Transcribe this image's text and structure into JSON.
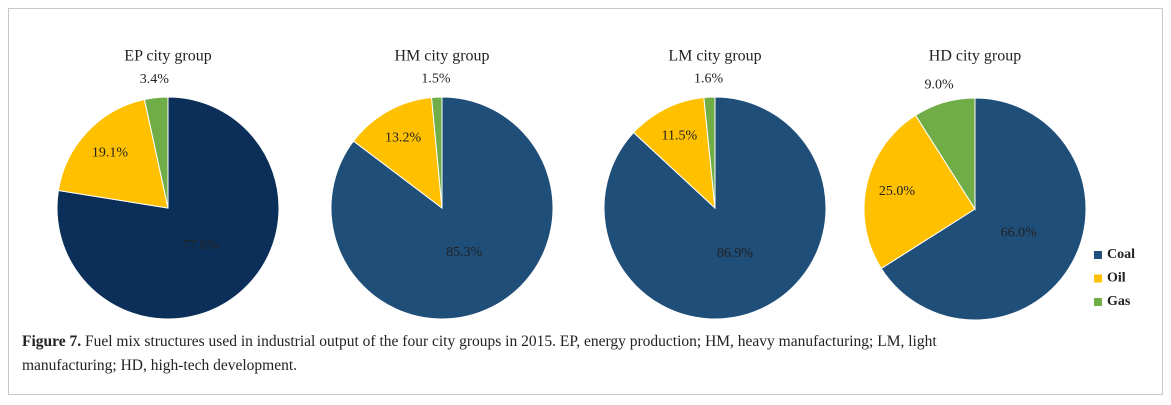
{
  "chart_data": [
    {
      "type": "pie",
      "title": "EP city group",
      "categories": [
        "Coal",
        "Oil",
        "Gas"
      ],
      "values": [
        77.6,
        19.1,
        3.4
      ],
      "value_labels": [
        "77.6%",
        "19.1%",
        "3.4%"
      ],
      "colors": [
        "#0b2f58",
        "#ffc000",
        "#70ad47"
      ]
    },
    {
      "type": "pie",
      "title": "HM city group",
      "categories": [
        "Coal",
        "Oil",
        "Gas"
      ],
      "values": [
        85.3,
        13.2,
        1.5
      ],
      "value_labels": [
        "85.3%",
        "13.2%",
        "1.5%"
      ],
      "colors": [
        "#1f4e79",
        "#ffc000",
        "#70ad47"
      ]
    },
    {
      "type": "pie",
      "title": "LM city group",
      "categories": [
        "Coal",
        "Oil",
        "Gas"
      ],
      "values": [
        86.9,
        11.5,
        1.6
      ],
      "value_labels": [
        "86.9%",
        "11.5%",
        "1.6%"
      ],
      "colors": [
        "#1f4e79",
        "#ffc000",
        "#70ad47"
      ]
    },
    {
      "type": "pie",
      "title": "HD city group",
      "categories": [
        "Coal",
        "Oil",
        "Gas"
      ],
      "values": [
        66.0,
        25.0,
        9.0
      ],
      "value_labels": [
        "66.0%",
        "25.0%",
        "9.0%"
      ],
      "colors": [
        "#1f4e79",
        "#ffc000",
        "#70ad47"
      ],
      "legend": "right"
    }
  ],
  "caption": {
    "label": "Figure 7.",
    "text": "Fuel mix structures used in industrial output of the four city groups in 2015. EP, energy production; HM, heavy manufacturing; LM, light manufacturing; HD, high-tech development."
  }
}
